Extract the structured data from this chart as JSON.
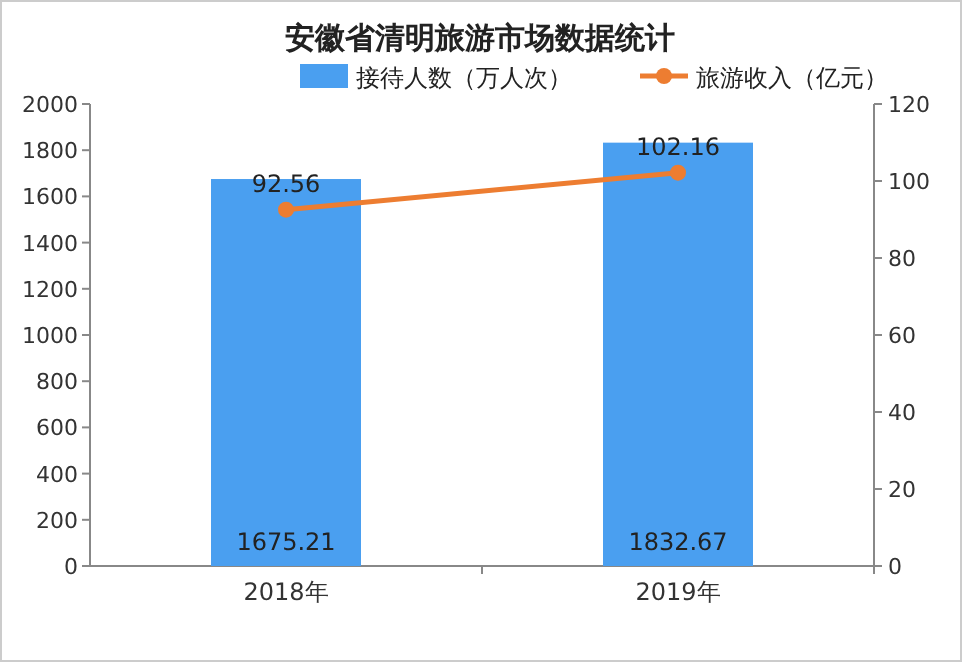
{
  "chart_data": {
    "type": "bar",
    "title": "安徽省清明旅游市场数据统计",
    "categories": [
      "2018年",
      "2019年"
    ],
    "series": [
      {
        "name": "接待人数（万人次）",
        "color": "#4a9ff0",
        "values": [
          1675.21,
          1832.67
        ]
      },
      {
        "name": "旅游收入（亿元）",
        "type": "line",
        "axis": "y2",
        "marker": "circle",
        "color": "#ed7d31",
        "values": [
          92.56,
          102.16
        ]
      }
    ],
    "ylim": [
      0,
      2000
    ],
    "yticks": [
      0,
      200,
      400,
      600,
      800,
      1000,
      1200,
      1400,
      1600,
      1800,
      2000
    ],
    "y2lim": [
      0,
      120
    ],
    "y2ticks": [
      0,
      20,
      40,
      60,
      80,
      100,
      120
    ],
    "data_labels": true,
    "legend": "top"
  }
}
